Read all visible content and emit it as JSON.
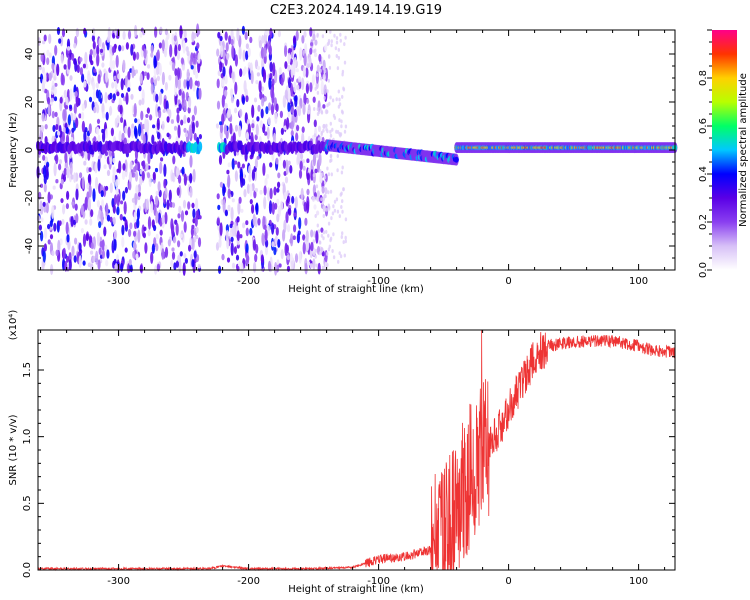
{
  "figure": {
    "title": "C2E3.2024.149.14.19.G19"
  },
  "chart_data": [
    {
      "type": "heatmap",
      "xlabel": "Height of straight line (km)",
      "ylabel": "Frequency (Hz)",
      "xlim": [
        -362,
        128
      ],
      "ylim": [
        -50,
        50
      ],
      "x_ticks": [
        -300,
        -200,
        -100,
        0,
        100
      ],
      "y_ticks": [
        -40,
        -20,
        0,
        20,
        40
      ],
      "colorbar": {
        "label": "Normalized spectral amplitude",
        "range": [
          0,
          1
        ],
        "ticks": [
          0.0,
          0.2,
          0.4,
          0.6,
          0.8
        ],
        "colors": [
          "#ffffff",
          "#d7c0f7",
          "#8a3ff0",
          "#5a00e6",
          "#0000ff",
          "#00c8ff",
          "#00ff66",
          "#b8ff00",
          "#ffd000",
          "#ff3300",
          "#ff0088"
        ]
      },
      "features": [
        {
          "x_range": [
            -362,
            -140
          ],
          "description_value": "broadband noise, amplitude 0.05-0.15"
        },
        {
          "x_range": [
            -140,
            -40
          ],
          "freq_center": -3,
          "amplitude": 0.3
        },
        {
          "x_range": [
            -40,
            128
          ],
          "freq_center": 1,
          "amplitude": 0.75
        }
      ],
      "grid": false
    },
    {
      "type": "line",
      "xlabel": "Height of straight line (km)",
      "ylabel": "SNR (10 * v/v)",
      "y_scale_label": "(x10⁴)",
      "xlim": [
        -362,
        128
      ],
      "ylim": [
        0,
        1.8
      ],
      "x_ticks": [
        -300,
        -200,
        -100,
        0,
        100
      ],
      "y_ticks": [
        0.0,
        0.5,
        1.0,
        1.5
      ],
      "series_color": "#ee3333",
      "envelope": {
        "x": [
          -362,
          -300,
          -230,
          -220,
          -200,
          -150,
          -120,
          -100,
          -80,
          -60,
          -50,
          -40,
          -30,
          -22,
          -15,
          -5,
          0,
          10,
          20,
          30,
          40,
          60,
          80,
          100,
          110,
          128
        ],
        "y": [
          0.01,
          0.01,
          0.01,
          0.03,
          0.01,
          0.01,
          0.02,
          0.08,
          0.1,
          0.15,
          0.25,
          0.45,
          0.7,
          0.85,
          0.95,
          1.1,
          1.2,
          1.4,
          1.6,
          1.68,
          1.7,
          1.72,
          1.72,
          1.68,
          1.65,
          1.63
        ]
      },
      "grid": false
    }
  ]
}
